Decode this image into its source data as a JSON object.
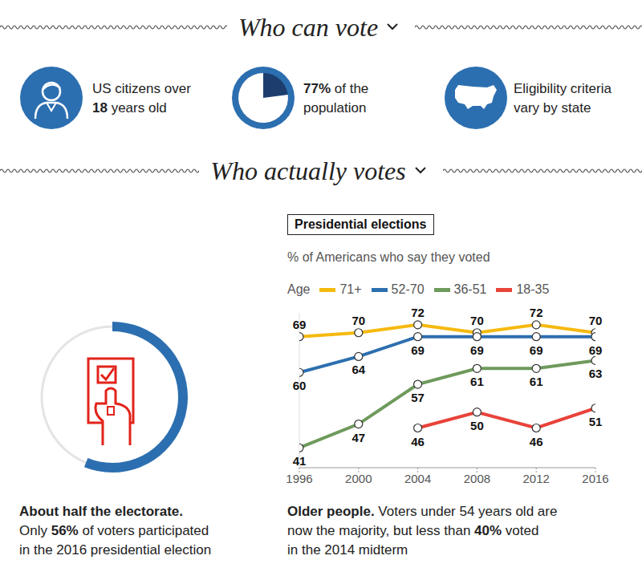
{
  "who_can_vote": {
    "heading": "Who can vote",
    "items": [
      {
        "lines": [
          [
            {
              "text": "US citizens over"
            }
          ],
          [
            {
              "text": "18",
              "bold": true
            },
            {
              "text": " years old"
            }
          ]
        ]
      },
      {
        "share": 77,
        "lines": [
          [
            {
              "text": "77%",
              "bold": true
            },
            {
              "text": " of the"
            }
          ],
          [
            {
              "text": "population"
            }
          ]
        ]
      },
      {
        "lines": [
          [
            {
              "text": "Eligibility criteria"
            }
          ],
          [
            {
              "text": "vary by state"
            }
          ]
        ]
      }
    ]
  },
  "who_actually_votes": {
    "heading": "Who actually votes",
    "turnout": 56,
    "caption": [
      [
        {
          "text": "About half the electorate.",
          "bold": true
        }
      ],
      [
        {
          "text": "Only "
        },
        {
          "text": "56%",
          "bold": true
        },
        {
          "text": " of voters participated"
        }
      ],
      [
        {
          "text": "in the 2016 presidential election"
        }
      ]
    ],
    "chart_caption": [
      [
        {
          "text": "Older people.",
          "bold": true
        },
        {
          "text": " Voters under 54 years old are"
        }
      ],
      [
        {
          "text": "now the majority, but less than "
        },
        {
          "text": "40%",
          "bold": true
        },
        {
          "text": " voted"
        }
      ],
      [
        {
          "text": "in the 2014 midterm"
        }
      ]
    ]
  },
  "chart_data": {
    "type": "line",
    "title": "Presidential elections",
    "subtitle": "% of Americans who say they voted",
    "legend_title": "Age",
    "x": [
      1996,
      2000,
      2004,
      2008,
      2012,
      2016
    ],
    "xlim": [
      1996,
      2016
    ],
    "xticks": [
      1996,
      2000,
      2004,
      2008,
      2012,
      2016
    ],
    "ylim": [
      36,
      75
    ],
    "tick_labels": "x",
    "grid": false,
    "data_labels": true,
    "marker": "circle",
    "series": [
      {
        "name": "71+",
        "color": "#f5b90f",
        "values": [
          69,
          70,
          72,
          70,
          72,
          70
        ]
      },
      {
        "name": "52-70",
        "color": "#2c6fb0",
        "values": [
          60,
          64,
          69,
          69,
          69,
          69
        ]
      },
      {
        "name": "36-51",
        "color": "#6e9a5c",
        "values": [
          41,
          47,
          57,
          61,
          61,
          63
        ]
      },
      {
        "name": "18-35",
        "color": "#e8433a",
        "values": [
          null,
          null,
          46,
          50,
          46,
          51
        ]
      }
    ]
  }
}
